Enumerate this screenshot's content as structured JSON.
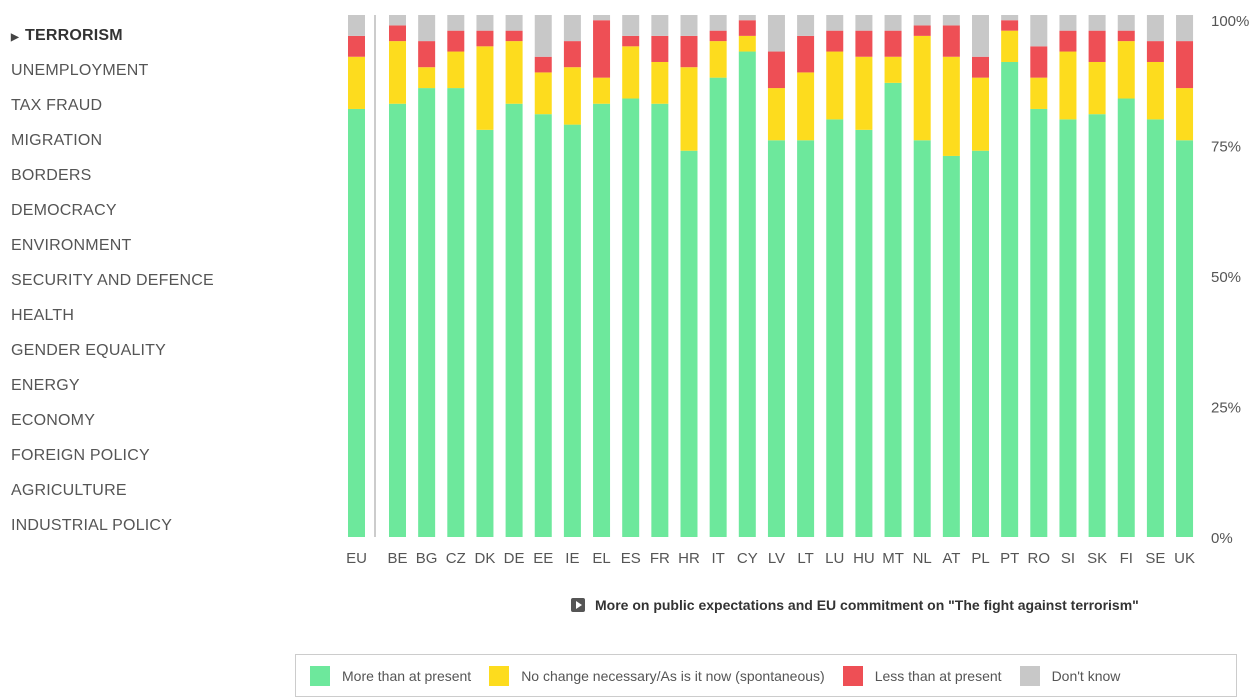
{
  "sidebar": {
    "topics": [
      {
        "label": "TERRORISM",
        "active": true
      },
      {
        "label": "UNEMPLOYMENT"
      },
      {
        "label": "TAX FRAUD"
      },
      {
        "label": "MIGRATION"
      },
      {
        "label": "BORDERS"
      },
      {
        "label": "DEMOCRACY"
      },
      {
        "label": "ENVIRONMENT"
      },
      {
        "label": "SECURITY AND DEFENCE"
      },
      {
        "label": "HEALTH"
      },
      {
        "label": "GENDER EQUALITY"
      },
      {
        "label": "ENERGY"
      },
      {
        "label": "ECONOMY"
      },
      {
        "label": "FOREIGN POLICY"
      },
      {
        "label": "AGRICULTURE"
      },
      {
        "label": "INDUSTRIAL POLICY"
      }
    ]
  },
  "more_link": {
    "label": "More on public expectations and EU commitment on \"The fight against terrorism\""
  },
  "colors": {
    "more": "#6de89c",
    "no_change": "#fddc1e",
    "less": "#ee4f55",
    "dont_know": "#c8c8c8"
  },
  "chart_data": {
    "type": "bar",
    "stacked": true,
    "categories": [
      "EU",
      "BE",
      "BG",
      "CZ",
      "DK",
      "DE",
      "EE",
      "IE",
      "EL",
      "ES",
      "FR",
      "HR",
      "IT",
      "CY",
      "LV",
      "LT",
      "LU",
      "HU",
      "MT",
      "NL",
      "AT",
      "PL",
      "PT",
      "RO",
      "SI",
      "SK",
      "FI",
      "SE",
      "UK"
    ],
    "series": [
      {
        "name": "More than at present",
        "values": [
          82,
          83,
          86,
          86,
          78,
          83,
          81,
          79,
          83,
          84,
          83,
          74,
          88,
          93,
          76,
          76,
          80,
          78,
          87,
          76,
          73,
          74,
          91,
          82,
          80,
          81,
          84,
          80,
          76
        ]
      },
      {
        "name": "No change necessary/As is it now (spontaneous)",
        "values": [
          10,
          12,
          4,
          7,
          16,
          12,
          8,
          11,
          5,
          10,
          8,
          16,
          7,
          3,
          10,
          13,
          13,
          14,
          5,
          20,
          19,
          14,
          6,
          6,
          13,
          10,
          11,
          11,
          10
        ]
      },
      {
        "name": "Less than at present",
        "values": [
          4,
          3,
          5,
          4,
          3,
          2,
          3,
          5,
          11,
          2,
          5,
          6,
          2,
          3,
          7,
          7,
          4,
          5,
          5,
          2,
          6,
          4,
          2,
          6,
          4,
          6,
          2,
          4,
          9
        ]
      },
      {
        "name": "Don't know",
        "values": [
          4,
          2,
          5,
          3,
          3,
          3,
          8,
          5,
          1,
          4,
          4,
          4,
          3,
          1,
          7,
          4,
          3,
          3,
          3,
          2,
          2,
          8,
          1,
          6,
          3,
          3,
          3,
          5,
          5
        ]
      }
    ],
    "y_ticks": [
      "0%",
      "25%",
      "50%",
      "75%",
      "100%"
    ],
    "ylim": [
      0,
      100
    ],
    "grid": false,
    "legend_position": "bottom"
  }
}
